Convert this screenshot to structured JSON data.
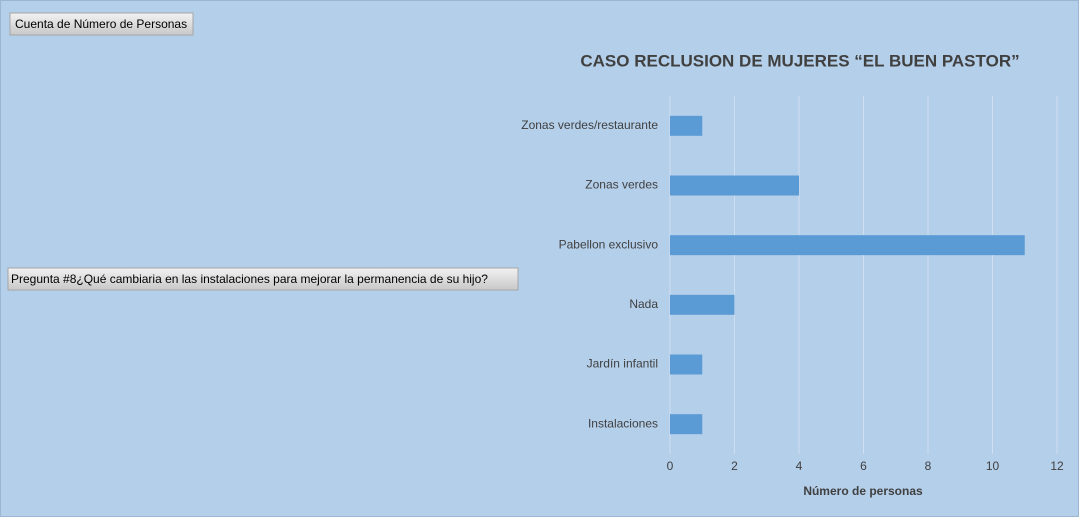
{
  "chart_data": {
    "type": "bar",
    "orientation": "horizontal",
    "title": "CASO RECLUSION DE MUJERES “EL BUEN PASTOR”",
    "value_field_button": "Cuenta de Número de Personas",
    "axis_field_button": "Pregunta #8¿Qué cambiaria en las instalaciones para mejorar la  permanencia de su hijo?",
    "x_label": "Número de personas",
    "categories": [
      "Zonas verdes/restaurante",
      "Zonas verdes",
      "Pabellon exclusivo",
      "Nada",
      "Jardín infantil",
      "Instalaciones"
    ],
    "values": [
      1,
      4,
      11,
      2,
      1,
      1
    ],
    "color": "#5b9bd5",
    "xlim": [
      0,
      12
    ],
    "xticks": [
      0,
      2,
      4,
      6,
      8,
      10,
      12
    ],
    "grid": true
  }
}
